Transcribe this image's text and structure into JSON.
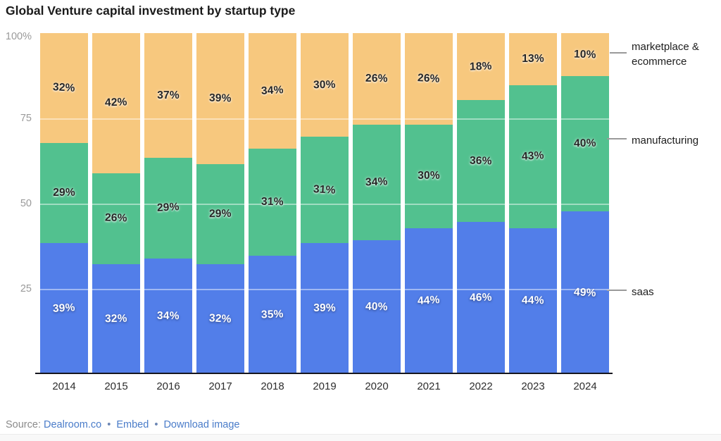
{
  "title": "Global Venture capital investment by startup type",
  "chart_data": {
    "type": "bar",
    "stacked": true,
    "title": "Global Venture capital investment by startup type",
    "categories": [
      "2014",
      "2015",
      "2016",
      "2017",
      "2018",
      "2019",
      "2020",
      "2021",
      "2022",
      "2023",
      "2024"
    ],
    "series": [
      {
        "name": "saas",
        "color": "#527ee9",
        "label_color": "light",
        "values": [
          39,
          32,
          34,
          32,
          35,
          39,
          40,
          44,
          46,
          44,
          49
        ]
      },
      {
        "name": "manufacturing",
        "color": "#52c18f",
        "label_color": "dark",
        "values": [
          29,
          26,
          29,
          29,
          31,
          31,
          34,
          30,
          36,
          43,
          40
        ]
      },
      {
        "name": "marketplace & ecommerce",
        "color": "#f7c87e",
        "label_color": "dark",
        "values": [
          32,
          42,
          37,
          39,
          34,
          30,
          26,
          26,
          18,
          13,
          10
        ]
      }
    ],
    "value_suffix": "%",
    "ylim": [
      0,
      100
    ],
    "y_ticks": [
      "100%",
      "75",
      "50",
      "25"
    ],
    "grid": "horizontal at 25/50/75",
    "legend_position": "right"
  },
  "legend": [
    {
      "label": "marketplace & ecommerce"
    },
    {
      "label": "manufacturing"
    },
    {
      "label": "saas"
    }
  ],
  "footer": {
    "source_label": "Source:",
    "separator": "•",
    "links": [
      "Dealroom.co",
      "Embed",
      "Download image"
    ]
  }
}
